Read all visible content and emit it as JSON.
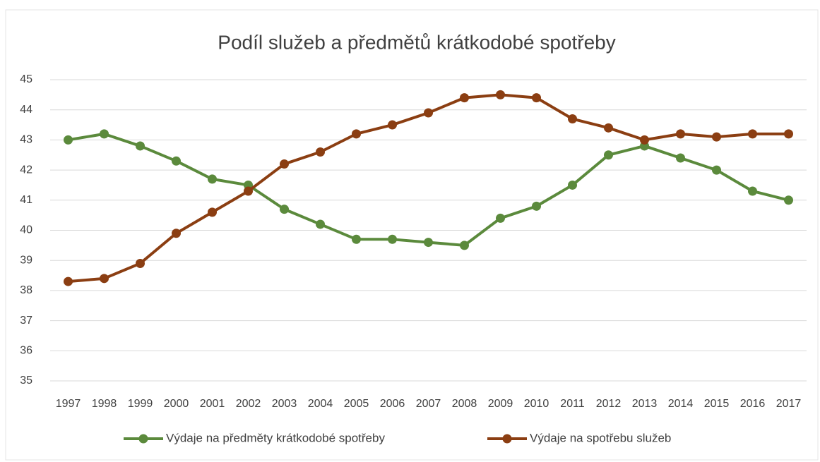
{
  "chart_data": {
    "type": "line",
    "title": "Podíl služeb a předmětů krátkodobé spotřeby",
    "categories": [
      "1997",
      "1998",
      "1999",
      "2000",
      "2001",
      "2002",
      "2003",
      "2004",
      "2005",
      "2006",
      "2007",
      "2008",
      "2009",
      "2010",
      "2011",
      "2012",
      "2013",
      "2014",
      "2015",
      "2016",
      "2017"
    ],
    "series": [
      {
        "name": "Výdaje na předměty krátkodobé spotřeby",
        "color": "#5b8a3c",
        "values": [
          43.0,
          43.2,
          42.8,
          42.3,
          41.7,
          41.5,
          40.7,
          40.2,
          39.7,
          39.7,
          39.6,
          39.5,
          40.4,
          40.8,
          41.5,
          42.5,
          42.8,
          42.4,
          42.0,
          41.3,
          41.0
        ]
      },
      {
        "name": "Výdaje na spotřebu služeb",
        "color": "#8b3e12",
        "values": [
          38.3,
          38.4,
          38.9,
          39.9,
          40.6,
          41.3,
          42.2,
          42.6,
          43.2,
          43.5,
          43.9,
          44.4,
          44.5,
          44.4,
          43.7,
          43.4,
          43.0,
          43.2,
          43.1,
          43.2,
          43.2
        ]
      }
    ],
    "ylim": [
      35,
      45
    ],
    "yticks": [
      35,
      36,
      37,
      38,
      39,
      40,
      41,
      42,
      43,
      44,
      45
    ],
    "grid": true,
    "legend": "bottom"
  }
}
